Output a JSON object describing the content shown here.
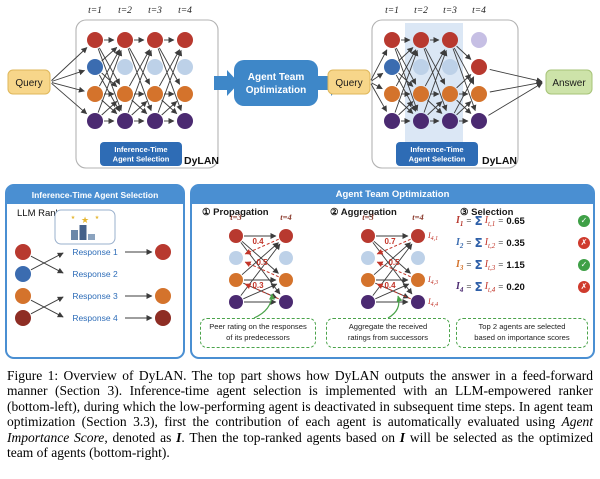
{
  "colors": {
    "agent_red": "#b8392f",
    "agent_blue": "#3b6cb0",
    "agent_orange": "#d4732c",
    "agent_purple": "#4b2a71",
    "agent_maroon": "#8e2d24",
    "agent_faded": "#bdd1e8",
    "agent_faded2": "#c6bfe4",
    "panel_blue": "#4a8fd2",
    "label_blue": "#2e6cb5",
    "box_blue": "#3e87c8",
    "query_bg": "#f7d68a",
    "query_border": "#dfb75a",
    "answer_bg": "#cde3a9",
    "answer_border": "#a6c377",
    "edge_dark": "#3c3c3c",
    "weight_red": "#c23428",
    "time_red": "#8a3a2c",
    "response_blue": "#2e6db8",
    "green": "#3fa047",
    "red_x": "#cf3b2d",
    "callout_green": "#4aa34a",
    "band_blue": "#dbe7f5",
    "sigma_blue": "#2e5fa8"
  },
  "top": {
    "query_label": "Query",
    "answer_label": "Answer",
    "center_label_1": "Agent Team",
    "center_label_2": "Optimization",
    "time_labels": [
      "t=1",
      "t=2",
      "t=3",
      "t=4"
    ],
    "selection_label_1": "Inference-Time",
    "selection_label_2": "Agent Selection",
    "brand": "DyLAN",
    "left_columns": [
      [
        "red",
        "blue",
        "orange",
        "purple"
      ],
      [
        "red",
        "faded",
        "orange",
        "purple"
      ],
      [
        "red",
        "faded",
        "orange",
        "purple"
      ],
      [
        "red",
        "faded",
        "orange",
        "purple"
      ]
    ],
    "right_columns": [
      [
        "red",
        "blue",
        "orange",
        "purple"
      ],
      [
        "red",
        "faded",
        "orange",
        "purple"
      ],
      [
        "red",
        "faded",
        "orange",
        "purple"
      ],
      [
        "faded2",
        "red",
        "orange",
        "purple"
      ]
    ]
  },
  "bottom_left": {
    "header": "Inference-Time Agent Selection",
    "ranker_label": "LLM Ranker",
    "responses": [
      "Response 1",
      "Response 2",
      "Response 3",
      "Response 4"
    ],
    "left_nodes": [
      "red",
      "blue",
      "orange",
      "maroon"
    ],
    "right_nodes": [
      "red",
      "orange",
      "maroon"
    ]
  },
  "bottom_right": {
    "header": "Agent Team Optimization",
    "propagation": {
      "title": "① Propagation",
      "time_labels": [
        "t=3",
        "t=4"
      ],
      "columns": [
        [
          "red",
          "faded",
          "orange",
          "purple"
        ],
        [
          "red",
          "faded",
          "orange",
          "purple"
        ]
      ],
      "weights": [
        "0.4",
        "0.5",
        "0.3"
      ],
      "note_1": "Peer rating on the responses",
      "note_2": "of its predecessors"
    },
    "aggregation": {
      "title": "② Aggregation",
      "time_labels": [
        "t=3",
        "t=4"
      ],
      "columns": [
        [
          "red",
          "faded",
          "orange",
          "purple"
        ],
        [
          "red",
          "faded",
          "orange",
          "purple"
        ]
      ],
      "weights": [
        "0.7",
        "0.5",
        "0.4"
      ],
      "i_labels": [
        {
          "sym": "I",
          "sub": "4,1"
        },
        {
          "sym": "I",
          "sub": "4,3"
        },
        {
          "sym": "I",
          "sub": "4,4"
        }
      ],
      "note_1": "Aggregate the received",
      "note_2": "ratings from successors"
    },
    "selection": {
      "title": "③ Selection",
      "sym": "I",
      "sigma": "Σ",
      "eq": "=",
      "rows": [
        {
          "sub": "1",
          "tsub": "t,1",
          "value": "0.65",
          "mark": "✓"
        },
        {
          "sub": "2",
          "tsub": "t,2",
          "value": "0.35",
          "mark": "✗"
        },
        {
          "sub": "3",
          "tsub": "t,3",
          "value": "1.15",
          "mark": "✓"
        },
        {
          "sub": "4",
          "tsub": "t,4",
          "value": "0.20",
          "mark": "✗"
        }
      ],
      "note_1": "Top 2 agents are selected",
      "note_2": "based on importance scores"
    }
  },
  "caption": {
    "p1": "Figure 1: Overview of DyLAN. The top part shows how DyLAN outputs the answer in a feed-forward manner (Section 3). Inference-time agent selection is implemented with an LLM-empowered ranker (bottom-left), during which the low-performing agent is deactivated in subsequent time steps. In agent team optimization (Section 3.3), first the contribution of each agent is automatically evaluated using ",
    "p2": "Agent Importance Score",
    "p3": ", denoted as ",
    "p4": "I",
    "p5": ". Then the top-ranked agents based on ",
    "p6": "I",
    "p7": " will be selected as the optimized team of agents (bottom-right)."
  }
}
